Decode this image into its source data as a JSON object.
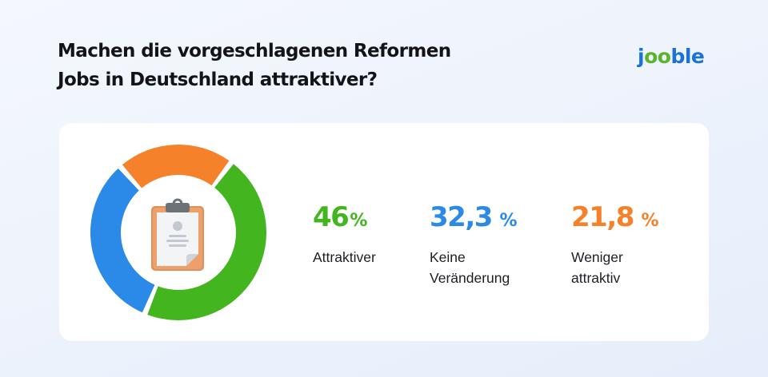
{
  "header": {
    "title_line1": "Machen die vorgeschlagenen Reformen",
    "title_line2": "Jobs in Deutschland attraktiver?"
  },
  "logo": {
    "parts": [
      "j",
      "oo",
      "ble"
    ],
    "colors": {
      "j": "#1a73d8",
      "oo": "#5ab52b",
      "ble": "#1a73d8"
    }
  },
  "center_icon": "clipboard-document-icon",
  "stats": [
    {
      "value": "46",
      "unit": "%",
      "label_line1": "Attraktiver",
      "label_line2": "",
      "color": "#43b51f"
    },
    {
      "value": "32,3",
      "unit": " %",
      "label_line1": "Keine",
      "label_line2": "Veränderung",
      "color": "#2b8ae8"
    },
    {
      "value": "21,8",
      "unit": " %",
      "label_line1": "Weniger",
      "label_line2": "attraktiv",
      "color": "#f5822a"
    }
  ],
  "chart_data": {
    "type": "pie",
    "variant": "donut",
    "title": "Machen die vorgeschlagenen Reformen Jobs in Deutschland attraktiver?",
    "categories": [
      "Attraktiver",
      "Keine Veränderung",
      "Weniger attraktiv"
    ],
    "values": [
      46,
      32.3,
      21.8
    ],
    "unit": "%",
    "colors": [
      "#43b51f",
      "#2b8ae8",
      "#f5822a"
    ],
    "legend_position": "right"
  }
}
